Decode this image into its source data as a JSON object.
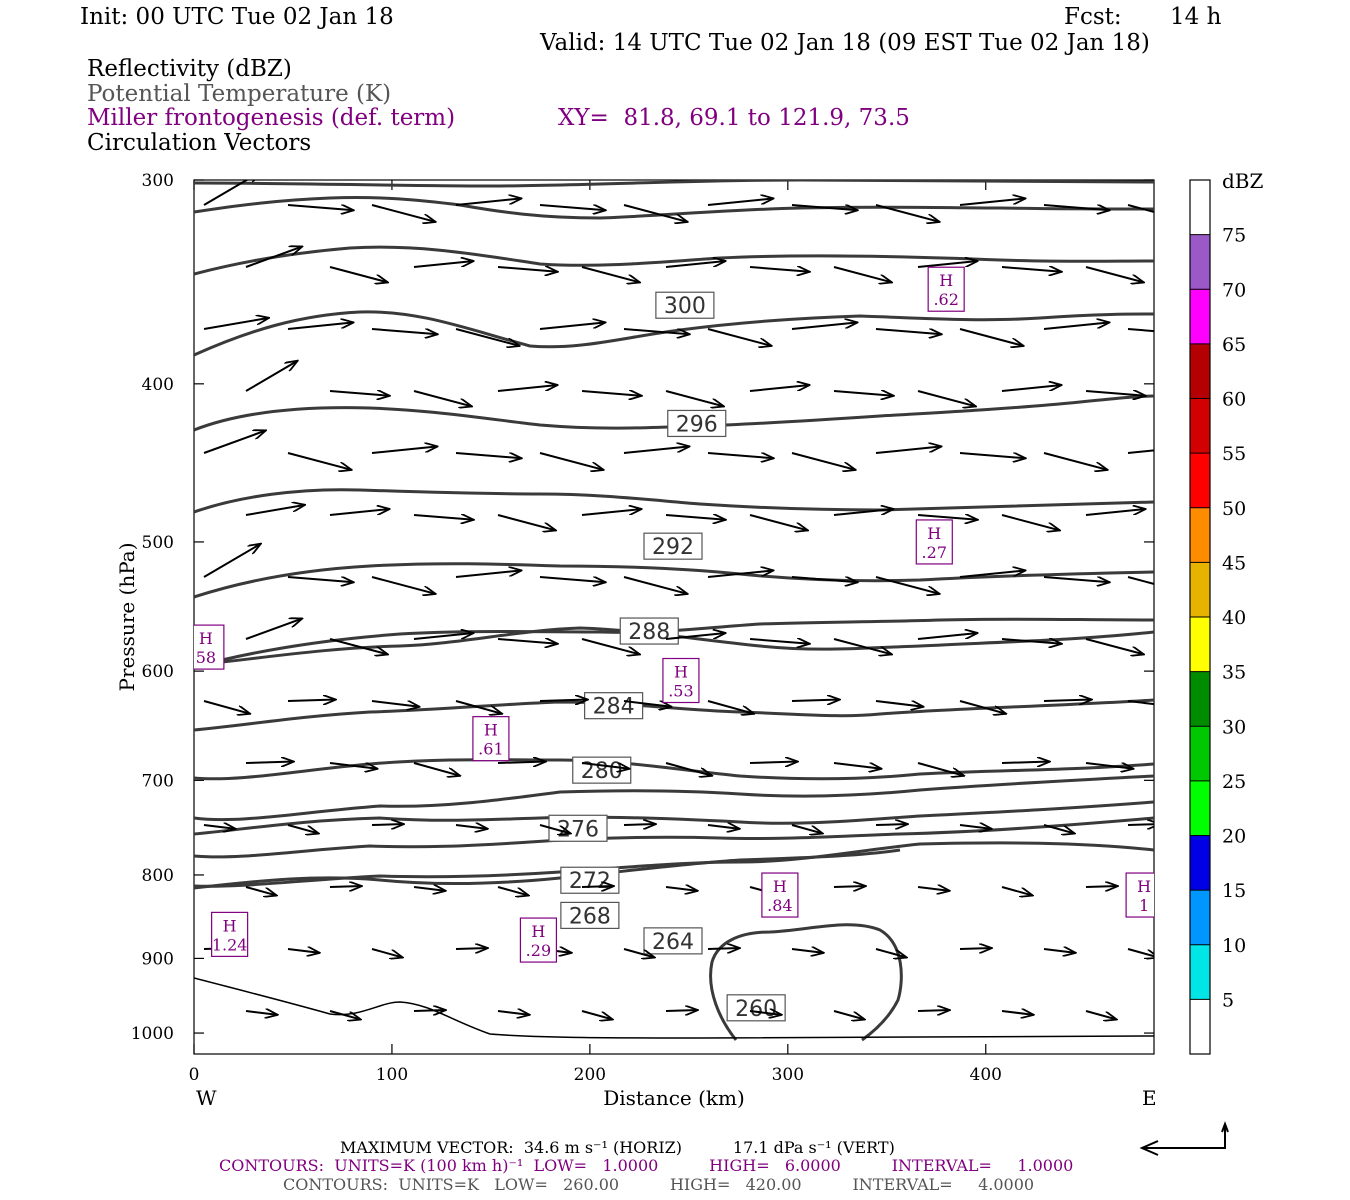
{
  "header": {
    "init": "Init: 00 UTC Tue 02 Jan 18",
    "fcst_label": "Fcst:",
    "fcst_value": "14 h",
    "valid": "Valid: 14 UTC Tue 02 Jan 18 (09 EST Tue 02 Jan 18)",
    "fields": [
      {
        "label": "Reflectivity (dBZ)",
        "color": "#000000"
      },
      {
        "label": "Potential Temperature (K)",
        "color": "#555555"
      },
      {
        "label": "Miller frontogenesis (def. term)",
        "color": "#800080"
      },
      {
        "label": "Circulation Vectors",
        "color": "#000000"
      }
    ],
    "xy": "XY=  81.8, 69.1 to 121.9, 73.5"
  },
  "chart_data": {
    "type": "contour",
    "xlabel": "Distance (km)",
    "ylabel": "Pressure (hPa)",
    "xlim": [
      0,
      485
    ],
    "ylim": [
      1030,
      300
    ],
    "y_log_scale": true,
    "x_ticks": [
      "0",
      "100",
      "200",
      "300",
      "400"
    ],
    "y_ticks": [
      "300",
      "400",
      "500",
      "600",
      "700",
      "800",
      "900",
      "1000"
    ],
    "x_end_labels": {
      "left": "W",
      "right": "E"
    },
    "theta_contours": [
      {
        "label": "300",
        "label_at": [
          248,
          358
        ]
      },
      {
        "label": "296",
        "label_at": [
          254,
          423
        ]
      },
      {
        "label": "292",
        "label_at": [
          242,
          503
        ]
      },
      {
        "label": "288",
        "label_at": [
          230,
          567
        ]
      },
      {
        "label": "284",
        "label_at": [
          212,
          630
        ]
      },
      {
        "label": "280",
        "label_at": [
          206,
          690
        ]
      },
      {
        "label": "276",
        "label_at": [
          194,
          749
        ]
      },
      {
        "label": "272",
        "label_at": [
          200,
          806
        ]
      },
      {
        "label": "268",
        "label_at": [
          200,
          847
        ]
      },
      {
        "label": "264",
        "label_at": [
          242,
          878
        ]
      },
      {
        "label": "260",
        "label_at": [
          284,
          965
        ]
      }
    ],
    "frontogenesis_maxima": [
      {
        "label": "H",
        "value": ".62",
        "x": 380,
        "p": 350
      },
      {
        "label": "H",
        "value": ".27",
        "x": 374,
        "p": 500
      },
      {
        "label": "H",
        "value": "58",
        "x": 6,
        "p": 580
      },
      {
        "label": "H",
        "value": ".53",
        "x": 246,
        "p": 608
      },
      {
        "label": "H",
        "value": ".61",
        "x": 150,
        "p": 660
      },
      {
        "label": "H",
        "value": ".84",
        "x": 296,
        "p": 823
      },
      {
        "label": "H",
        "value": "1",
        "x": 480,
        "p": 823
      },
      {
        "label": "H",
        "value": "1.24",
        "x": 18,
        "p": 870
      },
      {
        "label": "H",
        "value": ".29",
        "x": 174,
        "p": 877
      }
    ],
    "reflectivity_colorbar": {
      "unit": "dBZ",
      "levels": [
        "5",
        "10",
        "15",
        "20",
        "25",
        "30",
        "35",
        "40",
        "45",
        "50",
        "55",
        "60",
        "65",
        "70",
        "75"
      ],
      "colors": [
        "#ffffff",
        "#00e5e5",
        "#0096ff",
        "#0000e6",
        "#00ff00",
        "#00c800",
        "#008c00",
        "#ffff00",
        "#e6b400",
        "#ff8c00",
        "#ff0000",
        "#d20000",
        "#b40000",
        "#ff00ff",
        "#9b59c8",
        "#ffffff"
      ]
    }
  },
  "footer": {
    "max_vector": "MAXIMUM VECTOR:  34.6 m s⁻¹ (HORIZ)          17.1 dPa s⁻¹ (VERT)",
    "contours_fronto": "CONTOURS:  UNITS=K (100 km h)⁻¹  LOW=   1.0000          HIGH=   6.0000          INTERVAL=     1.0000",
    "contours_theta": "CONTOURS:  UNITS=K   LOW=   260.00          HIGH=   420.00          INTERVAL=     4.0000"
  }
}
